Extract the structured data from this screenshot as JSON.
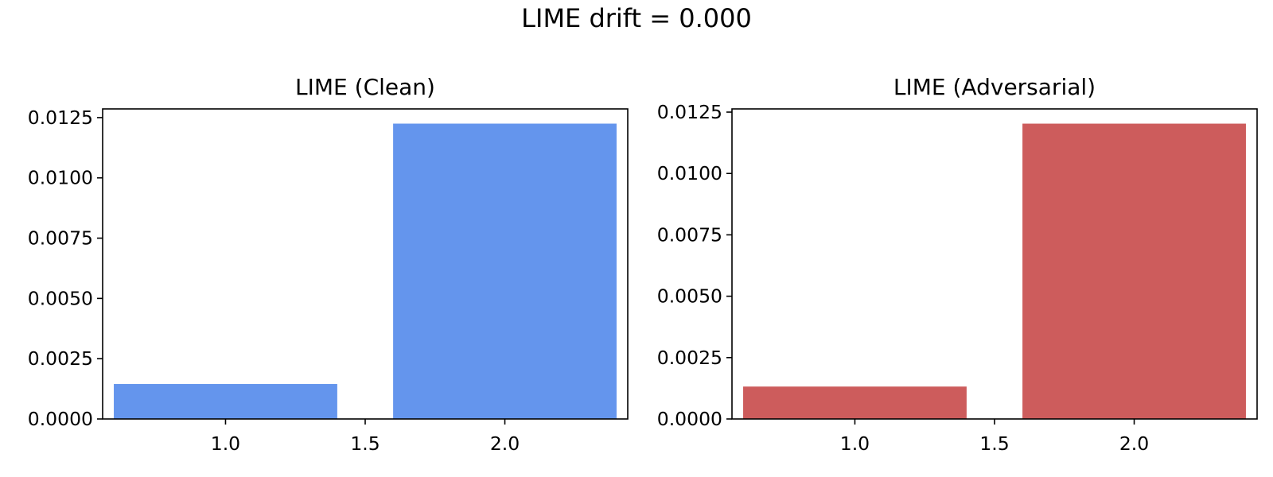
{
  "suptitle": "LIME drift = 0.000",
  "chart_data": [
    {
      "type": "bar",
      "title": "LIME (Clean)",
      "x": [
        1.0,
        2.0
      ],
      "values": [
        0.00145,
        0.01225
      ],
      "bar_width": 0.8,
      "xlim": [
        0.56,
        2.44
      ],
      "ylim": [
        0,
        0.01286
      ],
      "xticks": [
        1.0,
        1.5,
        2.0
      ],
      "xtick_labels": [
        "1.0",
        "1.5",
        "2.0"
      ],
      "yticks": [
        0,
        0.0025,
        0.005,
        0.0075,
        0.01,
        0.0125
      ],
      "ytick_labels": [
        "0.0000",
        "0.0025",
        "0.0050",
        "0.0075",
        "0.0100",
        "0.0125"
      ],
      "xlabel": "",
      "ylabel": "",
      "color": "#6495ED",
      "grid": false
    },
    {
      "type": "bar",
      "title": "LIME (Adversarial)",
      "x": [
        1.0,
        2.0
      ],
      "values": [
        0.00132,
        0.01203
      ],
      "bar_width": 0.8,
      "xlim": [
        0.56,
        2.44
      ],
      "ylim": [
        0,
        0.01263
      ],
      "xticks": [
        1.0,
        1.5,
        2.0
      ],
      "xtick_labels": [
        "1.0",
        "1.5",
        "2.0"
      ],
      "yticks": [
        0,
        0.0025,
        0.005,
        0.0075,
        0.01,
        0.0125
      ],
      "ytick_labels": [
        "0.0000",
        "0.0025",
        "0.0050",
        "0.0075",
        "0.0100",
        "0.0125"
      ],
      "xlabel": "",
      "ylabel": "",
      "color": "#CD5C5C",
      "grid": false
    }
  ]
}
